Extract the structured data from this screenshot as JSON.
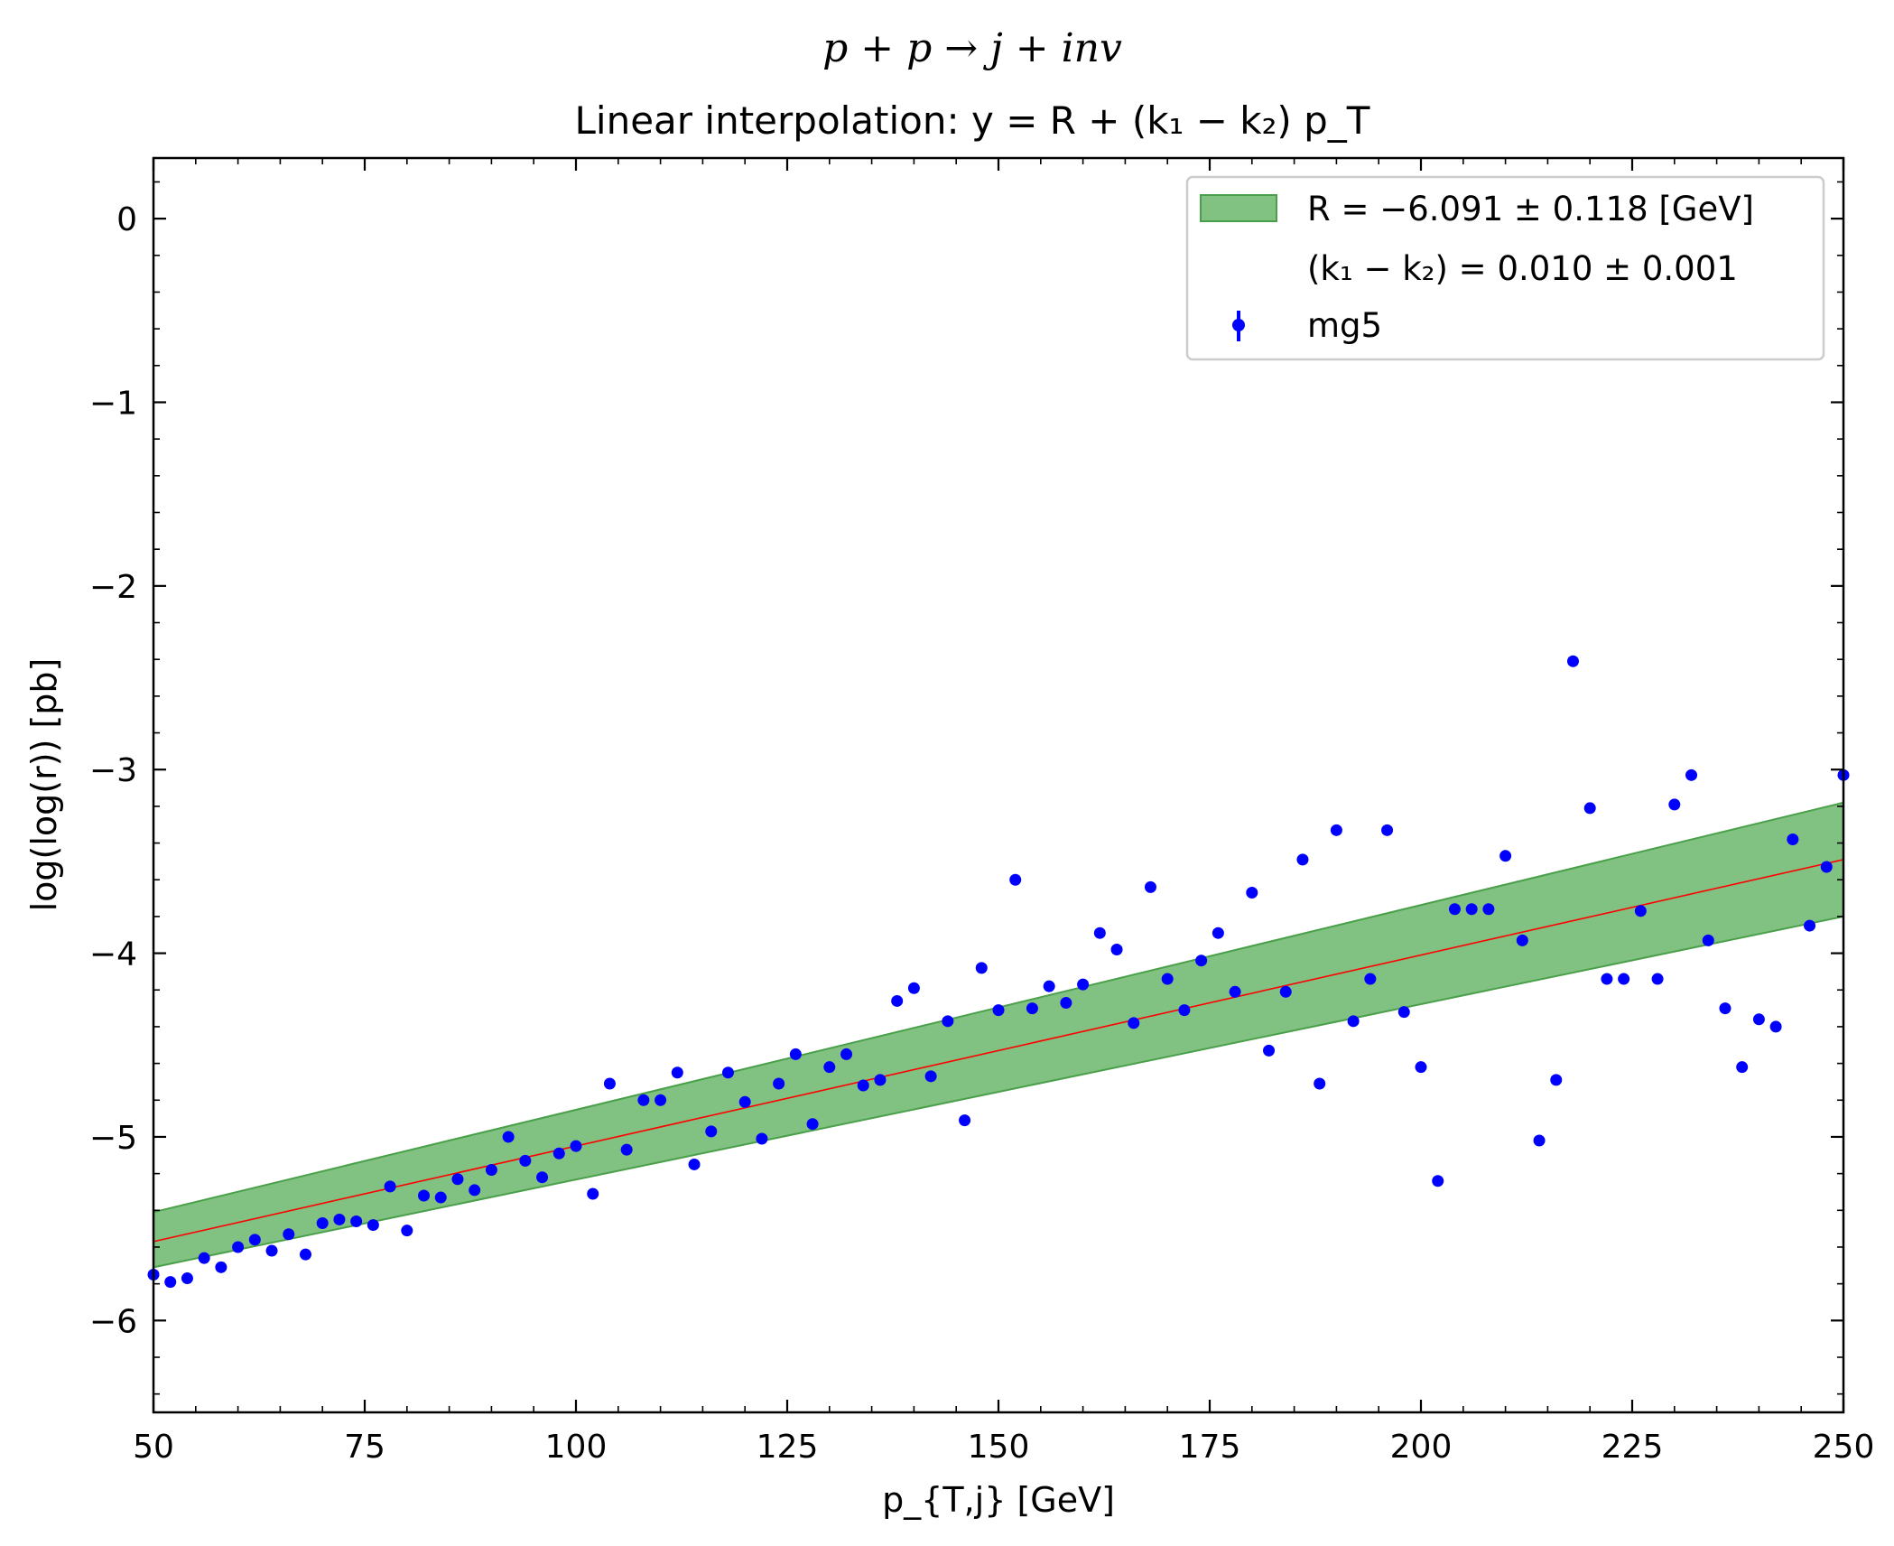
{
  "chart_data": {
    "type": "scatter",
    "title": "p + p → j +  inv",
    "subtitle": "Linear interpolation: y = R + (k₁ − k₂) p_T",
    "xlabel": "p_{T,j} [GeV]",
    "ylabel": "log(log(r)) [pb]",
    "xlim": [
      50,
      250
    ],
    "ylim": [
      -6.5,
      0.33
    ],
    "xticks": [
      50,
      75,
      100,
      125,
      150,
      175,
      200,
      225,
      250
    ],
    "yticks": [
      0,
      -1,
      -2,
      -3,
      -4,
      -5,
      -6
    ],
    "xtick_labels": [
      "50",
      "75",
      "100",
      "125",
      "150",
      "175",
      "200",
      "225",
      "250"
    ],
    "ytick_labels": [
      "0",
      "−1",
      "−2",
      "−3",
      "−4",
      "−5",
      "−6"
    ],
    "grid": false,
    "legend_position": "top-right",
    "legend": [
      {
        "label": "R = −6.091 ± 0.118 [GeV]",
        "kind": "band"
      },
      {
        "label": "(k₁ − k₂) = 0.010 ± 0.001",
        "kind": "none"
      },
      {
        "label": "mg5",
        "kind": "errorbar-point"
      }
    ],
    "fit": {
      "R": -6.091,
      "R_err": 0.118,
      "slope": 0.0104
    },
    "band": {
      "x": [
        50,
        250
      ],
      "upper": [
        -5.41,
        -3.18
      ],
      "lower": [
        -5.71,
        -3.8
      ]
    },
    "fit_line": {
      "x": [
        50,
        250
      ],
      "y": [
        -5.57,
        -3.49
      ]
    },
    "series": [
      {
        "name": "mg5",
        "x": [
          50.0,
          52.0,
          54.0,
          56.0,
          58.0,
          60.0,
          62.0,
          64.0,
          66.0,
          68.0,
          70.0,
          72.0,
          74.0,
          76.0,
          78.0,
          80.0,
          82.0,
          84.0,
          86.0,
          88.0,
          90.0,
          92.0,
          94.0,
          96.0,
          98.0,
          100.0,
          102.0,
          104.0,
          106.0,
          108.0,
          110.0,
          112.0,
          114.0,
          116.0,
          118.0,
          120.0,
          122.0,
          124.0,
          126.0,
          128.0,
          130.0,
          132.0,
          134.0,
          136.0,
          138.0,
          140.0,
          142.0,
          144.0,
          146.0,
          148.0,
          150.0,
          152.0,
          154.0,
          156.0,
          158.0,
          160.0,
          162.0,
          164.0,
          166.0,
          168.0,
          170.0,
          172.0,
          174.0,
          176.0,
          178.0,
          180.0,
          182.0,
          184.0,
          186.0,
          188.0,
          190.0,
          192.0,
          194.0,
          196.0,
          198.0,
          200.0,
          202.0,
          204.0,
          206.0,
          208.0,
          210.0,
          212.0,
          214.0,
          216.0,
          218.0,
          220.0,
          222.0,
          224.0,
          226.0,
          228.0,
          230.0,
          232.0,
          234.0,
          236.0,
          238.0,
          240.0,
          242.0,
          244.0,
          246.0,
          248.0,
          250.0
        ],
        "y": [
          -5.75,
          -5.79,
          -5.77,
          -5.66,
          -5.71,
          -5.6,
          -5.56,
          -5.62,
          -5.53,
          -5.64,
          -5.47,
          -5.45,
          -5.46,
          -5.48,
          -5.27,
          -5.51,
          -5.32,
          -5.33,
          -5.23,
          -5.29,
          -5.18,
          -5.0,
          -5.13,
          -5.22,
          -5.09,
          -5.05,
          -5.31,
          -4.71,
          -5.07,
          -4.8,
          -4.8,
          -4.65,
          -5.15,
          -4.97,
          -4.65,
          -4.81,
          -5.01,
          -4.71,
          -4.55,
          -4.93,
          -4.62,
          -4.55,
          -4.72,
          -4.69,
          -4.26,
          -4.19,
          -4.67,
          -4.37,
          -4.91,
          -4.08,
          -4.31,
          -3.6,
          -4.3,
          -4.18,
          -4.27,
          -4.17,
          -3.89,
          -3.98,
          -4.38,
          -3.64,
          -4.14,
          -4.31,
          -4.04,
          -3.89,
          -4.21,
          -3.67,
          -4.53,
          -4.21,
          -3.49,
          -4.71,
          -3.33,
          -4.37,
          -4.14,
          -3.33,
          -4.32,
          -4.62,
          -5.24,
          -3.76,
          -3.76,
          -3.76,
          -3.47,
          -3.93,
          -5.02,
          -4.69,
          -2.41,
          -3.21,
          -4.14,
          -4.14,
          -3.77,
          -4.14,
          -3.19,
          -3.03,
          -3.93,
          -4.3,
          -4.62,
          -4.36,
          -4.4,
          -3.38,
          -3.85,
          -3.53,
          -3.03
        ]
      }
    ]
  },
  "colors": {
    "band_fill": "#81c181",
    "band_edge": "#4aa04a",
    "fit_line": "#ff0000",
    "points": "#0000ff"
  }
}
